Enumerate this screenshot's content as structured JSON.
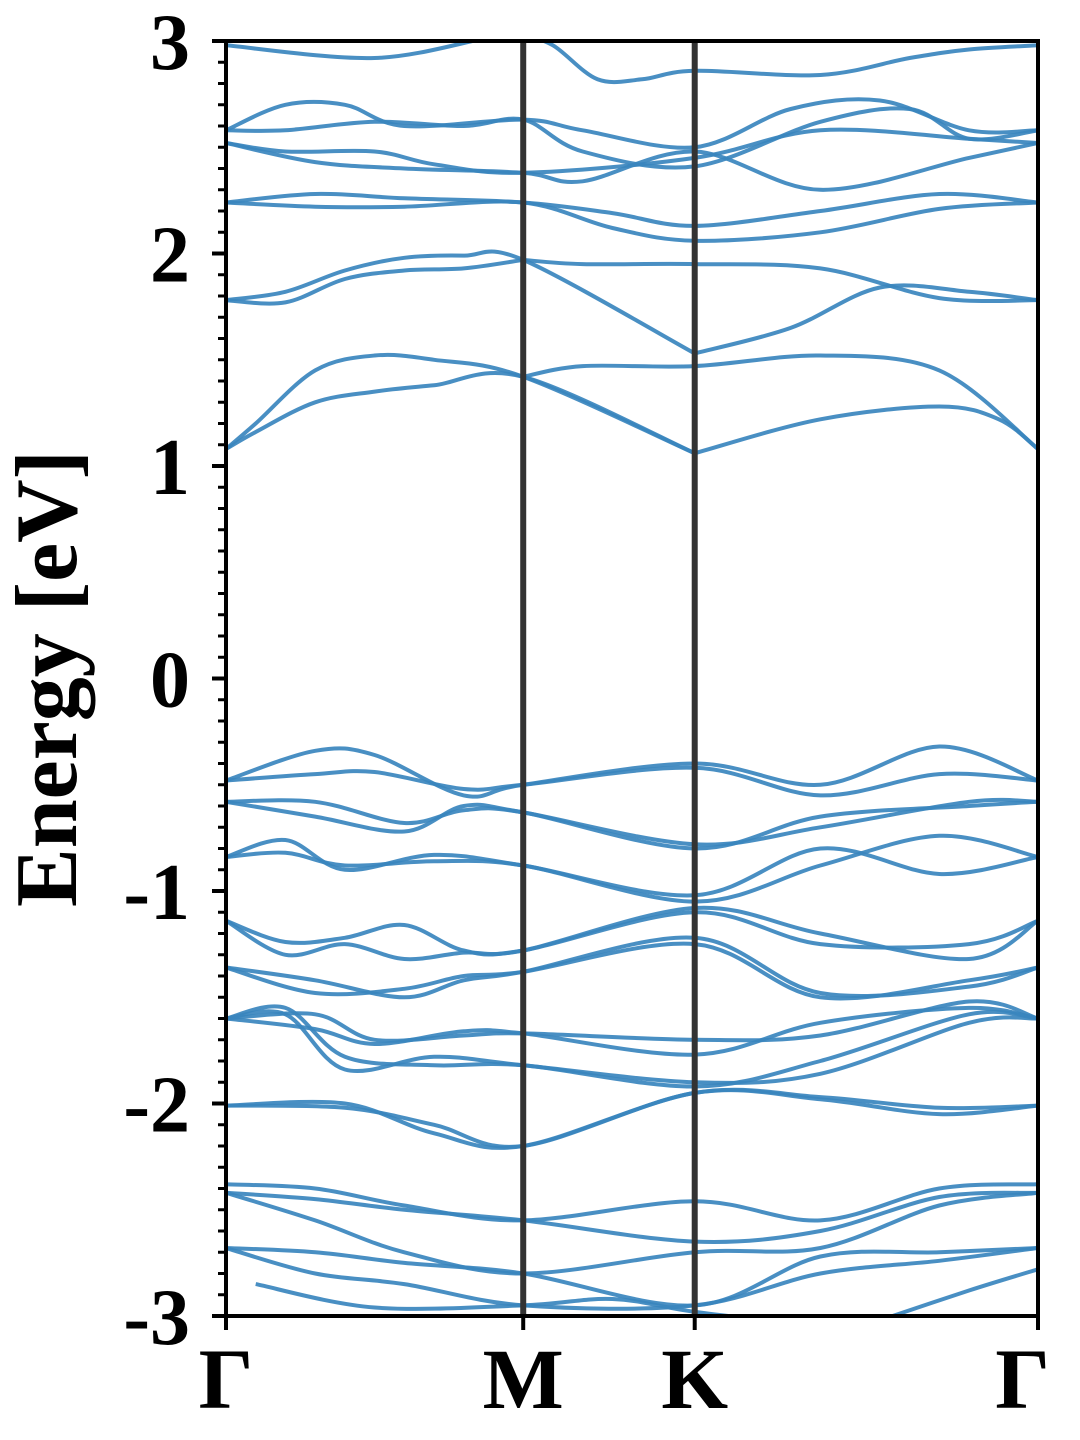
{
  "chart_data": {
    "type": "line",
    "title": "",
    "ylabel": "Energy [eV]",
    "xlabel": "",
    "ylim": [
      -3,
      3
    ],
    "yticks": [
      "3",
      "2",
      "1",
      "0",
      "-1",
      "-2",
      "-3"
    ],
    "ytick_values": [
      3,
      2,
      1,
      0,
      -1,
      -2,
      -3
    ],
    "minor_tick_step": 0.1,
    "kpoints": [
      {
        "label": "Γ",
        "x": 0
      },
      {
        "label": "M",
        "x": 1
      },
      {
        "label": "K",
        "x": 1.577
      },
      {
        "label": "Γ",
        "x": 2.732
      }
    ],
    "grid": false,
    "legend": "none",
    "band_color": "#3a86be",
    "divider_color": "#333333",
    "series": [
      {
        "x": [
          0,
          0.1,
          0.3,
          0.5,
          0.7,
          1.0,
          1.577
        ],
        "values": [
          1.08,
          1.16,
          1.3,
          1.35,
          1.38,
          1.42,
          1.06
        ]
      },
      {
        "x": [
          0,
          0.1,
          0.3,
          0.5,
          0.7,
          1.0,
          1.577
        ],
        "values": [
          1.08,
          1.2,
          1.45,
          1.52,
          1.5,
          1.42,
          1.06
        ]
      },
      {
        "x": [
          1.0,
          1.2,
          1.577,
          2.0,
          2.4,
          2.732
        ],
        "values": [
          1.42,
          1.47,
          1.47,
          1.52,
          1.45,
          1.08
        ]
      },
      {
        "x": [
          1.577,
          2.0,
          2.4,
          2.6,
          2.732
        ],
        "values": [
          1.06,
          1.22,
          1.28,
          1.22,
          1.08
        ]
      },
      {
        "x": [
          0,
          0.2,
          0.4,
          0.6,
          0.8,
          1.0,
          1.577
        ],
        "values": [
          1.78,
          1.82,
          1.92,
          1.98,
          1.99,
          1.97,
          1.53
        ]
      },
      {
        "x": [
          0,
          0.2,
          0.4,
          0.6,
          0.8,
          1.0
        ],
        "values": [
          1.78,
          1.77,
          1.88,
          1.92,
          1.93,
          1.97
        ]
      },
      {
        "x": [
          1.0,
          1.2,
          1.577,
          2.0,
          2.4,
          2.732
        ],
        "values": [
          1.97,
          1.95,
          1.95,
          1.93,
          1.79,
          1.78
        ]
      },
      {
        "x": [
          1.577,
          1.9,
          2.2,
          2.5,
          2.732
        ],
        "values": [
          1.53,
          1.65,
          1.84,
          1.82,
          1.78
        ]
      },
      {
        "x": [
          0,
          0.3,
          0.6,
          1.0,
          1.3,
          1.577,
          2.0,
          2.4,
          2.732
        ],
        "values": [
          2.24,
          2.28,
          2.26,
          2.24,
          2.19,
          2.13,
          2.2,
          2.28,
          2.24
        ]
      },
      {
        "x": [
          0,
          0.3,
          0.6,
          1.0,
          1.3,
          1.577,
          2.0,
          2.4,
          2.732
        ],
        "values": [
          2.24,
          2.22,
          2.22,
          2.24,
          2.12,
          2.06,
          2.1,
          2.21,
          2.24
        ]
      },
      {
        "x": [
          0,
          0.2,
          0.5,
          0.7,
          1.0,
          1.577,
          2.0,
          2.5,
          2.732
        ],
        "values": [
          2.52,
          2.48,
          2.48,
          2.42,
          2.38,
          2.45,
          2.58,
          2.54,
          2.52
        ]
      },
      {
        "x": [
          0,
          0.3,
          0.6,
          1.0,
          1.2,
          1.577,
          2.0,
          2.5,
          2.732
        ],
        "values": [
          2.52,
          2.43,
          2.4,
          2.38,
          2.34,
          2.48,
          2.3,
          2.45,
          2.52
        ]
      },
      {
        "x": [
          0,
          0.2,
          0.4,
          0.6,
          1.0,
          1.2,
          1.577,
          1.9,
          2.2,
          2.5,
          2.732
        ],
        "values": [
          2.58,
          2.7,
          2.7,
          2.6,
          2.63,
          2.58,
          2.5,
          2.68,
          2.72,
          2.58,
          2.58
        ]
      },
      {
        "x": [
          0,
          0.2,
          0.5,
          0.8,
          1.0,
          1.2,
          1.577,
          2.0,
          2.3,
          2.5,
          2.732
        ],
        "values": [
          2.58,
          2.58,
          2.62,
          2.6,
          2.63,
          2.48,
          2.41,
          2.62,
          2.68,
          2.54,
          2.58
        ]
      },
      {
        "x": [
          0,
          0.5,
          0.9,
          1.0,
          1.1,
          1.25,
          1.4,
          1.577,
          2.0,
          2.3,
          2.5,
          2.732
        ],
        "values": [
          2.98,
          2.92,
          3.02,
          3.02,
          2.98,
          2.82,
          2.82,
          2.86,
          2.84,
          2.92,
          2.96,
          2.98
        ]
      },
      {
        "x": [
          0,
          0.3,
          0.5,
          0.8,
          1.0,
          1.577,
          2.0,
          2.4,
          2.732
        ],
        "values": [
          -0.48,
          -0.34,
          -0.36,
          -0.55,
          -0.5,
          -0.4,
          -0.5,
          -0.32,
          -0.48
        ]
      },
      {
        "x": [
          0,
          0.3,
          0.5,
          0.8,
          1.0,
          1.577,
          2.0,
          2.4,
          2.732
        ],
        "values": [
          -0.48,
          -0.45,
          -0.44,
          -0.52,
          -0.5,
          -0.42,
          -0.55,
          -0.45,
          -0.48
        ]
      },
      {
        "x": [
          0,
          0.3,
          0.6,
          0.8,
          1.0,
          1.577,
          2.0,
          2.5,
          2.732
        ],
        "values": [
          -0.58,
          -0.65,
          -0.72,
          -0.6,
          -0.63,
          -0.78,
          -0.7,
          -0.58,
          -0.58
        ]
      },
      {
        "x": [
          0,
          0.3,
          0.6,
          0.8,
          1.0,
          1.577,
          2.0,
          2.5,
          2.732
        ],
        "values": [
          -0.58,
          -0.58,
          -0.68,
          -0.62,
          -0.63,
          -0.8,
          -0.65,
          -0.6,
          -0.58
        ]
      },
      {
        "x": [
          0,
          0.2,
          0.4,
          0.7,
          1.0,
          1.577,
          2.0,
          2.4,
          2.732
        ],
        "values": [
          -0.84,
          -0.76,
          -0.9,
          -0.83,
          -0.88,
          -1.02,
          -0.8,
          -0.92,
          -0.84
        ]
      },
      {
        "x": [
          0,
          0.2,
          0.4,
          0.7,
          1.0,
          1.577,
          2.0,
          2.4,
          2.732
        ],
        "values": [
          -0.84,
          -0.82,
          -0.88,
          -0.86,
          -0.88,
          -1.05,
          -0.88,
          -0.74,
          -0.84
        ]
      },
      {
        "x": [
          0,
          0.2,
          0.4,
          0.6,
          0.8,
          1.0,
          1.577,
          2.0,
          2.5,
          2.732
        ],
        "values": [
          -1.14,
          -1.24,
          -1.22,
          -1.16,
          -1.28,
          -1.28,
          -1.1,
          -1.25,
          -1.25,
          -1.14
        ]
      },
      {
        "x": [
          0,
          0.2,
          0.4,
          0.6,
          0.8,
          1.0,
          1.577,
          2.0,
          2.5,
          2.732
        ],
        "values": [
          -1.14,
          -1.3,
          -1.25,
          -1.32,
          -1.29,
          -1.28,
          -1.08,
          -1.2,
          -1.32,
          -1.14
        ]
      },
      {
        "x": [
          0,
          0.3,
          0.6,
          0.8,
          1.0,
          1.577,
          2.0,
          2.5,
          2.732
        ],
        "values": [
          -1.36,
          -1.42,
          -1.5,
          -1.42,
          -1.38,
          -1.22,
          -1.48,
          -1.45,
          -1.36
        ]
      },
      {
        "x": [
          0,
          0.3,
          0.6,
          0.8,
          1.0,
          1.577,
          2.0,
          2.5,
          2.732
        ],
        "values": [
          -1.36,
          -1.48,
          -1.46,
          -1.4,
          -1.38,
          -1.25,
          -1.5,
          -1.42,
          -1.36
        ]
      },
      {
        "x": [
          0,
          0.3,
          0.5,
          0.8,
          1.0,
          1.577,
          2.0,
          2.5,
          2.732
        ],
        "values": [
          -1.6,
          -1.58,
          -1.7,
          -1.68,
          -1.67,
          -1.7,
          -1.68,
          -1.52,
          -1.6
        ]
      },
      {
        "x": [
          0,
          0.3,
          0.5,
          0.8,
          1.0,
          1.577,
          2.0,
          2.5,
          2.732
        ],
        "values": [
          -1.6,
          -1.65,
          -1.72,
          -1.66,
          -1.67,
          -1.77,
          -1.62,
          -1.55,
          -1.6
        ]
      },
      {
        "x": [
          0,
          0.2,
          0.4,
          0.7,
          1.0,
          1.577,
          2.0,
          2.5,
          2.732
        ],
        "values": [
          -1.6,
          -1.55,
          -1.78,
          -1.82,
          -1.82,
          -1.92,
          -1.8,
          -1.58,
          -1.6
        ]
      },
      {
        "x": [
          0,
          0.2,
          0.4,
          0.7,
          1.0,
          1.577,
          2.0,
          2.5,
          2.732
        ],
        "values": [
          -1.6,
          -1.58,
          -1.84,
          -1.78,
          -1.82,
          -1.9,
          -1.86,
          -1.62,
          -1.6
        ]
      },
      {
        "x": [
          0,
          0.4,
          0.7,
          1.0,
          1.577,
          2.0,
          2.4,
          2.732
        ],
        "values": [
          -2.01,
          -2.02,
          -2.1,
          -2.2,
          -1.95,
          -1.98,
          -2.05,
          -2.01
        ]
      },
      {
        "x": [
          0,
          0.4,
          0.7,
          1.0,
          1.577,
          2.0,
          2.4,
          2.732
        ],
        "values": [
          -2.01,
          -2.0,
          -2.14,
          -2.2,
          -1.95,
          -1.97,
          -2.02,
          -2.01
        ]
      },
      {
        "x": [
          0,
          0.3,
          0.6,
          1.0,
          1.577,
          2.0,
          2.4,
          2.732
        ],
        "values": [
          -2.38,
          -2.4,
          -2.48,
          -2.55,
          -2.46,
          -2.55,
          -2.4,
          -2.38
        ]
      },
      {
        "x": [
          0,
          0.3,
          0.6,
          1.0,
          1.577,
          2.0,
          2.4,
          2.732
        ],
        "values": [
          -2.42,
          -2.45,
          -2.5,
          -2.55,
          -2.65,
          -2.6,
          -2.44,
          -2.42
        ]
      },
      {
        "x": [
          0,
          0.3,
          0.6,
          1.0,
          1.577,
          2.0,
          2.4,
          2.732
        ],
        "values": [
          -2.42,
          -2.55,
          -2.7,
          -2.8,
          -2.7,
          -2.68,
          -2.48,
          -2.42
        ]
      },
      {
        "x": [
          0,
          0.3,
          0.6,
          1.0,
          1.577,
          2.0,
          2.4,
          2.732
        ],
        "values": [
          -2.68,
          -2.7,
          -2.75,
          -2.8,
          -2.95,
          -2.72,
          -2.7,
          -2.68
        ]
      },
      {
        "x": [
          0,
          0.3,
          0.6,
          1.0,
          1.577,
          2.0,
          2.4,
          2.732
        ],
        "values": [
          -2.68,
          -2.8,
          -2.85,
          -2.95,
          -2.95,
          -2.8,
          -2.74,
          -2.68
        ]
      },
      {
        "x": [
          0.1,
          0.5,
          1.0,
          1.3,
          1.577,
          2.0
        ],
        "values": [
          -2.85,
          -2.96,
          -2.95,
          -2.92,
          -2.98,
          -3.05
        ]
      },
      {
        "x": [
          2.2,
          2.5,
          2.732
        ],
        "values": [
          -3.02,
          -2.88,
          -2.78
        ]
      }
    ]
  }
}
